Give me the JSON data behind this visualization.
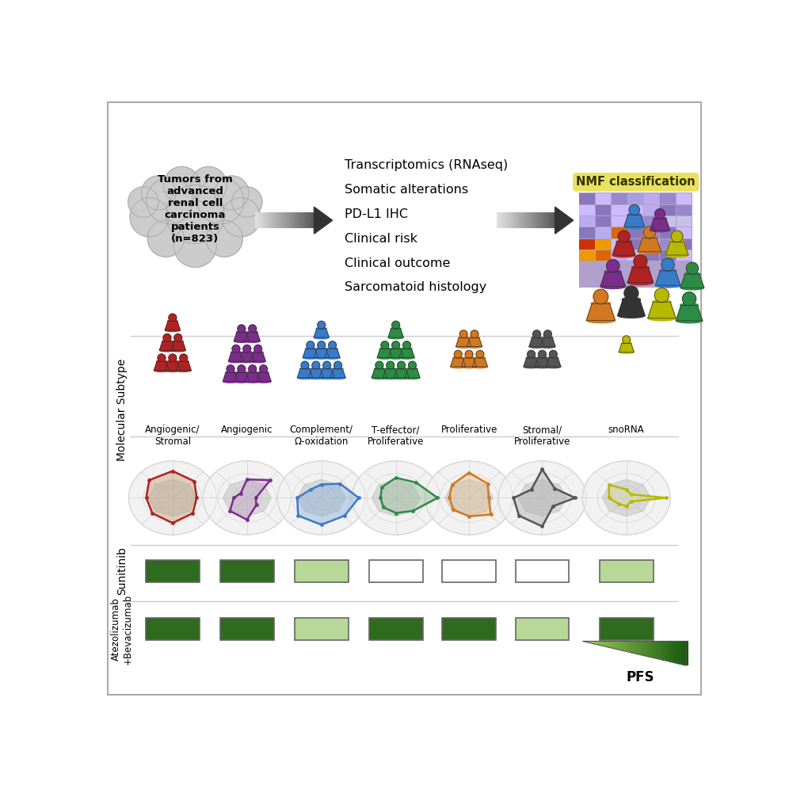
{
  "subtypes": [
    "Angiogenic/\nStromal",
    "Angiogenic",
    "Complement/\nΩ-oxidation",
    "T-effector/\nProliferative",
    "Proliferative",
    "Stromal/\nProliferative",
    "snoRNA"
  ],
  "subtype_colors": [
    "#b22222",
    "#7b2d8b",
    "#3a7bc8",
    "#2d8b45",
    "#d27820",
    "#555555",
    "#b8b800"
  ],
  "sunitinib_fill": [
    "#2e6b1e",
    "#2e6b1e",
    "#b8d898",
    "#ffffff",
    "#ffffff",
    "#ffffff",
    "#b8d898"
  ],
  "atezobeva_fill": [
    "#2e6b1e",
    "#2e6b1e",
    "#b8d898",
    "#2e6b1e",
    "#2e6b1e",
    "#b8d898",
    "#2e6b1e"
  ],
  "omics_labels": [
    "Transcriptomics (RNAseq)",
    "Somatic alterations",
    "PD-L1 IHC",
    "Clinical risk",
    "Clinical outcome",
    "Sarcomatoid histology"
  ],
  "bg_color": "#ffffff",
  "nmf_crowd_colors": [
    "#d27820",
    "#333333",
    "#b8b800",
    "#2d8b45",
    "#7b2d8b",
    "#b22222",
    "#3a7bc8",
    "#2d8b45",
    "#d27820",
    "#b8b800",
    "#b22222",
    "#7b2d8b"
  ],
  "radar_fill_colors": [
    "#c4a07a",
    "#c0a0c8",
    "#8ab0d8",
    "#9abf9a",
    "#dfc090",
    "#b0b0b0",
    "#d8d8a0"
  ],
  "radar_shapes": [
    [
      0.75,
      0.65,
      0.55,
      0.7,
      0.8,
      0.75,
      0.6,
      0.65
    ],
    [
      0.65,
      0.3,
      0.2,
      0.75,
      0.55,
      0.2,
      0.3,
      0.55
    ],
    [
      0.8,
      0.75,
      0.85,
      0.6,
      0.4,
      0.35,
      0.55,
      0.75
    ],
    [
      0.45,
      0.55,
      0.95,
      0.65,
      0.6,
      0.45,
      0.35,
      0.4
    ],
    [
      0.55,
      0.7,
      0.45,
      0.6,
      0.75,
      0.55,
      0.45,
      0.5
    ],
    [
      0.85,
      0.35,
      0.75,
      0.4,
      0.85,
      0.35,
      0.65,
      0.75
    ],
    [
      0.25,
      0.15,
      0.9,
      0.15,
      0.25,
      0.55,
      0.4,
      0.25
    ]
  ]
}
